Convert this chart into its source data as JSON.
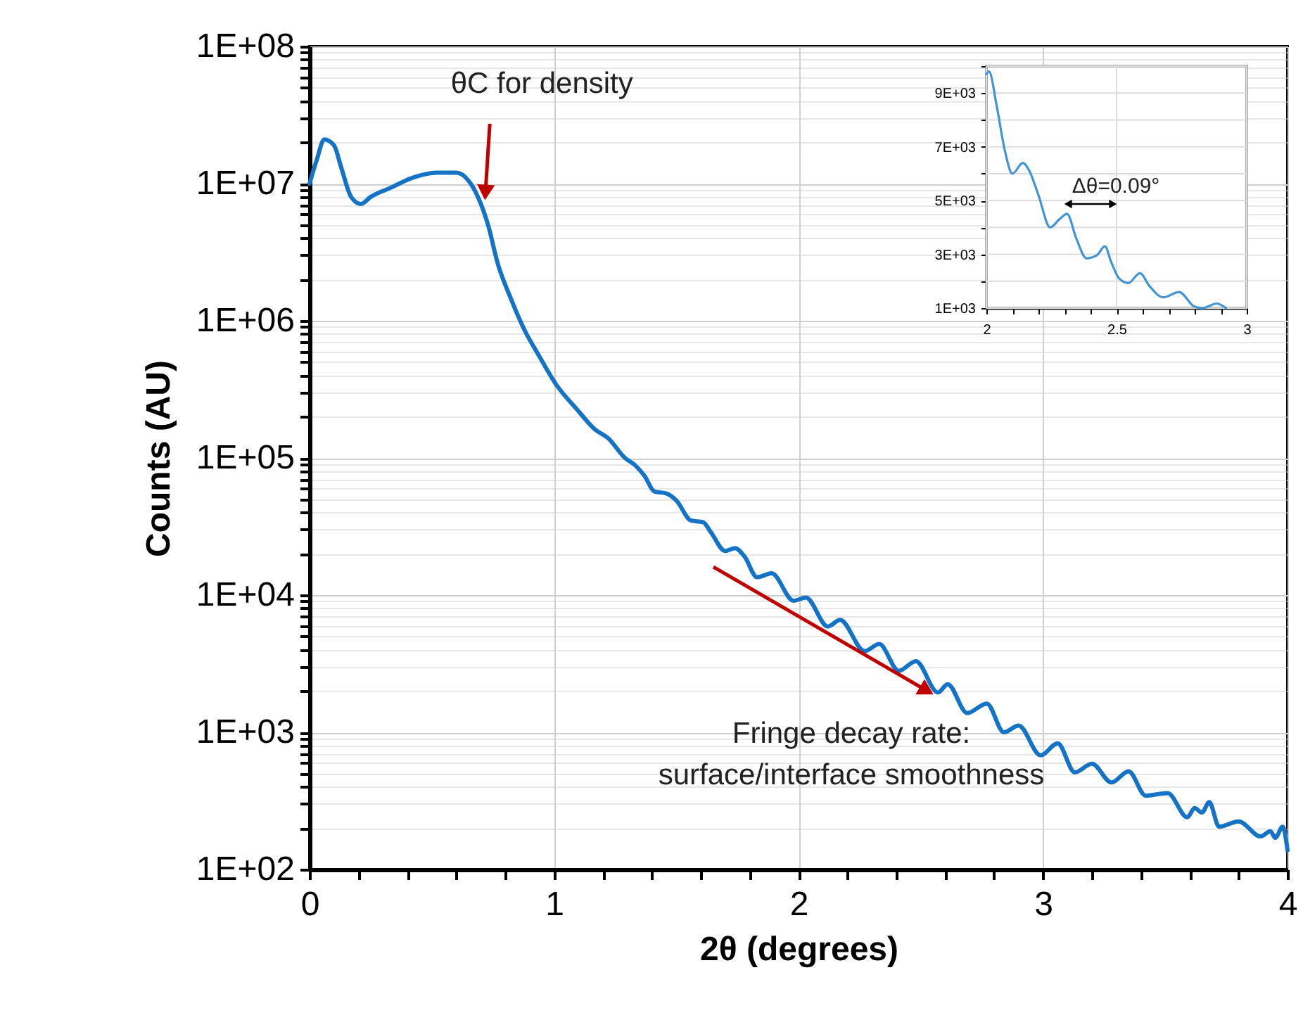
{
  "chart_data": [
    {
      "type": "line",
      "xlabel": "2θ (degrees)",
      "ylabel": "Counts (AU)",
      "log": "y",
      "grid": true,
      "xlim": [
        0,
        4
      ],
      "ylim": [
        100,
        100000000
      ],
      "xticks": [
        0,
        {
          "value": 0.2,
          "label": null
        },
        {
          "value": 0.4,
          "label": null
        },
        {
          "value": 0.6,
          "label": null
        },
        {
          "value": 0.8,
          "label": null
        },
        1,
        {
          "value": 1.2,
          "label": null
        },
        {
          "value": 1.4,
          "label": null
        },
        {
          "value": 1.6,
          "label": null
        },
        {
          "value": 1.8,
          "label": null
        },
        2,
        {
          "value": 2.2,
          "label": null
        },
        {
          "value": 2.4,
          "label": null
        },
        {
          "value": 2.6,
          "label": null
        },
        {
          "value": 2.8,
          "label": null
        },
        3,
        {
          "value": 3.2,
          "label": null
        },
        {
          "value": 3.4,
          "label": null
        },
        {
          "value": 3.6,
          "label": null
        },
        {
          "value": 3.8,
          "label": null
        },
        4
      ],
      "yticks": [
        {
          "value": 100,
          "label": "1E+02"
        },
        {
          "value": 1000,
          "label": "1E+03"
        },
        {
          "value": 10000,
          "label": "1E+04"
        },
        {
          "value": 100000,
          "label": "1E+05"
        },
        {
          "value": 1000000,
          "label": "1E+06"
        },
        {
          "value": 10000000,
          "label": "1E+07"
        },
        {
          "value": 100000000,
          "label": "1E+08"
        },
        {
          "value": 200,
          "label": null
        },
        {
          "value": 300,
          "label": null
        },
        {
          "value": 400,
          "label": null
        },
        {
          "value": 500,
          "label": null
        },
        {
          "value": 600,
          "label": null
        },
        {
          "value": 700,
          "label": null
        },
        {
          "value": 800,
          "label": null
        },
        {
          "value": 900,
          "label": null
        },
        {
          "value": 2000,
          "label": null
        },
        {
          "value": 3000,
          "label": null
        },
        {
          "value": 4000,
          "label": null
        },
        {
          "value": 5000,
          "label": null
        },
        {
          "value": 6000,
          "label": null
        },
        {
          "value": 7000,
          "label": null
        },
        {
          "value": 8000,
          "label": null
        },
        {
          "value": 9000,
          "label": null
        },
        {
          "value": 20000,
          "label": null
        },
        {
          "value": 30000,
          "label": null
        },
        {
          "value": 40000,
          "label": null
        },
        {
          "value": 50000,
          "label": null
        },
        {
          "value": 60000,
          "label": null
        },
        {
          "value": 70000,
          "label": null
        },
        {
          "value": 80000,
          "label": null
        },
        {
          "value": 90000,
          "label": null
        },
        {
          "value": 200000,
          "label": null
        },
        {
          "value": 300000,
          "label": null
        },
        {
          "value": 400000,
          "label": null
        },
        {
          "value": 500000,
          "label": null
        },
        {
          "value": 600000,
          "label": null
        },
        {
          "value": 700000,
          "label": null
        },
        {
          "value": 800000,
          "label": null
        },
        {
          "value": 900000,
          "label": null
        },
        {
          "value": 2000000,
          "label": null
        },
        {
          "value": 3000000,
          "label": null
        },
        {
          "value": 4000000,
          "label": null
        },
        {
          "value": 5000000,
          "label": null
        },
        {
          "value": 6000000,
          "label": null
        },
        {
          "value": 7000000,
          "label": null
        },
        {
          "value": 8000000,
          "label": null
        },
        {
          "value": 9000000,
          "label": null
        },
        {
          "value": 20000000,
          "label": null
        },
        {
          "value": 30000000,
          "label": null
        },
        {
          "value": 40000000,
          "label": null
        },
        {
          "value": 50000000,
          "label": null
        },
        {
          "value": 60000000,
          "label": null
        },
        {
          "value": 70000000,
          "label": null
        },
        {
          "value": 80000000,
          "label": null
        },
        {
          "value": 90000000,
          "label": null
        }
      ],
      "annotations": [
        {
          "text": "θC for density",
          "x": 0.72,
          "y": 9000000
        },
        "Fringe decay rate:\nsurface/interface smoothness"
      ],
      "series": [
        {
          "color": "#1473c6",
          "x": [
            0,
            0.03,
            0.06,
            0.1,
            0.13,
            0.17,
            0.21,
            0.25,
            0.33,
            0.42,
            0.52,
            0.6,
            0.65,
            0.69,
            0.73,
            0.77,
            0.82,
            0.88,
            0.94,
            1.01,
            1.09,
            1.17,
            1.22,
            1.29,
            1.33,
            1.37,
            1.41,
            1.46,
            1.5,
            1.56,
            1.61,
            1.64,
            1.7,
            1.74,
            1.78,
            1.83,
            1.89,
            1.98,
            2.03,
            2.12,
            2.17,
            2.27,
            2.33,
            2.41,
            2.48,
            2.57,
            2.61,
            2.69,
            2.77,
            2.84,
            2.9,
            2.99,
            3.06,
            3.13,
            3.2,
            3.28,
            3.35,
            3.42,
            3.51,
            3.59,
            3.62,
            3.65,
            3.68,
            3.72,
            3.8,
            3.89,
            3.93,
            3.95,
            3.98,
            4.0
          ],
          "values": [
            10000000,
            15000000,
            21000000,
            19000000,
            13000000,
            8000000,
            7100000,
            8000000,
            9300000,
            11000000,
            12000000,
            12000000,
            10500000,
            7900000,
            5000000,
            2600000,
            1500000,
            850000,
            550000,
            340000,
            230000,
            160000,
            140000,
            100000,
            89000,
            74000,
            57000,
            55000,
            49000,
            35000,
            34000,
            29000,
            21000,
            22000,
            19000,
            13500,
            14400,
            9100,
            9600,
            5900,
            6600,
            3900,
            4400,
            2800,
            3300,
            1950,
            2240,
            1380,
            1620,
            1000,
            1120,
            680,
            830,
            510,
            590,
            430,
            520,
            345,
            360,
            240,
            280,
            260,
            310,
            205,
            224,
            174,
            190,
            170,
            205,
            138
          ]
        }
      ]
    },
    {
      "type": "line",
      "grid": true,
      "xlim": [
        2,
        3
      ],
      "ylim": [
        1000,
        10000
      ],
      "xticks": [
        2,
        {
          "value": 2.1,
          "label": null
        },
        {
          "value": 2.2,
          "label": null
        },
        {
          "value": 2.3,
          "label": null
        },
        {
          "value": 2.4,
          "label": null
        },
        2.5,
        {
          "value": 2.6,
          "label": null
        },
        {
          "value": 2.7,
          "label": null
        },
        {
          "value": 2.8,
          "label": null
        },
        {
          "value": 2.9,
          "label": null
        },
        3
      ],
      "yticks": [
        {
          "value": 1000,
          "label": "1E+03"
        },
        {
          "value": 3000,
          "label": "3E+03"
        },
        {
          "value": 5000,
          "label": "5E+03"
        },
        {
          "value": 7000,
          "label": "7E+03"
        },
        {
          "value": 9000,
          "label": "9E+03"
        },
        {
          "value": 2000,
          "label": null
        },
        {
          "value": 4000,
          "label": null
        },
        {
          "value": 6000,
          "label": null
        },
        {
          "value": 8000,
          "label": null
        },
        {
          "value": 10000,
          "label": null
        }
      ],
      "annotations": [
        "Δθ=0.09°"
      ],
      "series": [
        {
          "color": "#3f95d6",
          "x": [
            2.0,
            2.01,
            2.04,
            2.07,
            2.1,
            2.14,
            2.165,
            2.2,
            2.245,
            2.28,
            2.31,
            2.345,
            2.385,
            2.425,
            2.455,
            2.48,
            2.51,
            2.545,
            2.59,
            2.625,
            2.68,
            2.74,
            2.8,
            2.83,
            2.885,
            2.92
          ],
          "values": [
            9700,
            9800,
            8500,
            6900,
            6000,
            6400,
            6100,
            5200,
            4000,
            4300,
            4500,
            3600,
            2850,
            2970,
            3300,
            2700,
            2100,
            1930,
            2300,
            1840,
            1400,
            1600,
            1050,
            1000,
            1170,
            1000
          ]
        }
      ]
    }
  ]
}
